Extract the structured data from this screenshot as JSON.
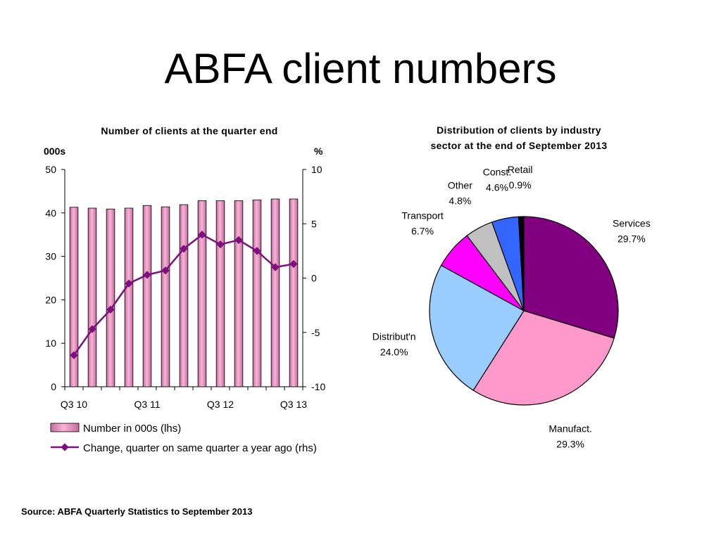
{
  "slide": {
    "title": "ABFA client numbers",
    "source": "Source: ABFA Quarterly Statistics to September 2013"
  },
  "chart_data": [
    {
      "type": "bar",
      "title": "Number of clients at the quarter end",
      "y_left_label": "000s",
      "y_right_label": "%",
      "ylim_left": [
        0,
        50
      ],
      "ylim_right": [
        -10,
        10
      ],
      "y_left_ticks": [
        "0",
        "10",
        "20",
        "30",
        "40",
        "50"
      ],
      "y_right_ticks": [
        "-10",
        "-5",
        "0",
        "5",
        "10"
      ],
      "x_tick_labels": [
        "Q3 10",
        "Q3 11",
        "Q3 12",
        "Q3 13"
      ],
      "x_tick_label_quarters": [
        0,
        4,
        8,
        12
      ],
      "grid": false,
      "legend_position": "bottom",
      "series": [
        {
          "name": "Number in 000s (lhs)",
          "type": "bar",
          "axis": "left",
          "color": "#f09ac4",
          "values": [
            41.3,
            41.1,
            40.9,
            41.1,
            41.7,
            41.4,
            41.9,
            42.8,
            42.8,
            42.8,
            43.0,
            43.2,
            43.2
          ]
        },
        {
          "name": "Change, quarter on same quarter a year ago (rhs)",
          "type": "line",
          "axis": "right",
          "color": "#7f0f7f",
          "values": [
            -7.1,
            -4.7,
            -2.9,
            -0.5,
            0.3,
            0.7,
            2.7,
            4.0,
            3.1,
            3.5,
            2.5,
            1.0,
            1.3
          ]
        }
      ]
    },
    {
      "type": "pie",
      "title_lines": [
        "Distribution of clients by industry",
        "sector at the end of September 2013"
      ],
      "slices": [
        {
          "name": "Services",
          "value_label": "29.7%",
          "value": 29.7,
          "color": "#800080"
        },
        {
          "name": "Manufact.",
          "value_label": "29.3%",
          "value": 29.3,
          "color": "#ff99cc"
        },
        {
          "name": "Distribut'n",
          "value_label": "24.0%",
          "value": 24.0,
          "color": "#99ccff"
        },
        {
          "name": "Transport",
          "value_label": "6.7%",
          "value": 6.7,
          "color": "#ff00ff"
        },
        {
          "name": "Other",
          "value_label": "4.8%",
          "value": 4.8,
          "color": "#c0c0c0"
        },
        {
          "name": "Const.",
          "value_label": "4.6%",
          "value": 4.6,
          "color": "#3366ff"
        },
        {
          "name": "Retail",
          "value_label": "0.9%",
          "value": 0.9,
          "color": "#000000"
        }
      ]
    }
  ]
}
